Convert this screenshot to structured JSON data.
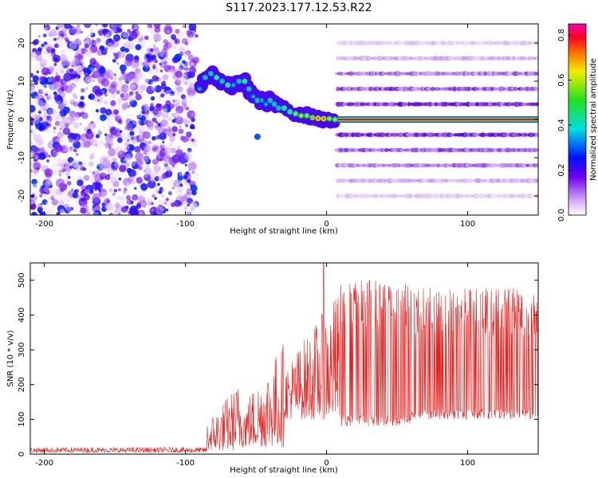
{
  "figure_title": "S117.2023.177.12.53.R22",
  "colors": {
    "snr_line": "#e8201e",
    "spectrum_noise": "#7a12e8",
    "axis": "#000000"
  },
  "chart_data": [
    {
      "type": "heatmap",
      "xlabel": "Height of straight line (km)",
      "ylabel": "Frequency (Hz)",
      "xlim": [
        -210,
        150
      ],
      "ylim": [
        -25,
        25
      ],
      "xticks": [
        -200,
        -100,
        0,
        100
      ],
      "yticks": [
        -20,
        -10,
        0,
        10,
        20
      ],
      "grid": false,
      "colorbar": {
        "label": "Normalized spectral amplitude",
        "range": [
          0,
          0.85
        ],
        "ticks": [
          "0.0",
          "0.2",
          "0.4",
          "0.6",
          "0.8"
        ],
        "colormap": "rainbow"
      },
      "features": {
        "noise_region_x": [
          -210,
          -92
        ],
        "track_points": [
          {
            "x": -90,
            "y": 8,
            "v": 0.3
          },
          {
            "x": -86,
            "y": 11,
            "v": 0.35
          },
          {
            "x": -82,
            "y": 12,
            "v": 0.35
          },
          {
            "x": -78,
            "y": 11,
            "v": 0.4
          },
          {
            "x": -74,
            "y": 10,
            "v": 0.35
          },
          {
            "x": -70,
            "y": 9,
            "v": 0.4
          },
          {
            "x": -66,
            "y": 9,
            "v": 0.3
          },
          {
            "x": -62,
            "y": 10,
            "v": 0.35
          },
          {
            "x": -58,
            "y": 10,
            "v": 0.4
          },
          {
            "x": -55,
            "y": 8,
            "v": 0.35
          },
          {
            "x": -52,
            "y": 6,
            "v": 0.3
          },
          {
            "x": -49,
            "y": 5,
            "v": 0.35
          },
          {
            "x": -46,
            "y": 5,
            "v": 0.3
          },
          {
            "x": -43,
            "y": 4,
            "v": 0.3
          },
          {
            "x": -40,
            "y": 5,
            "v": 0.35
          },
          {
            "x": -37,
            "y": 4,
            "v": 0.35
          },
          {
            "x": -34,
            "y": 3,
            "v": 0.35
          },
          {
            "x": -30,
            "y": 3,
            "v": 0.4
          },
          {
            "x": -26,
            "y": 2,
            "v": 0.4
          },
          {
            "x": -22,
            "y": 1.5,
            "v": 0.45
          },
          {
            "x": -18,
            "y": 1,
            "v": 0.5
          },
          {
            "x": -14,
            "y": 1,
            "v": 0.45
          },
          {
            "x": -10,
            "y": 0.5,
            "v": 0.55
          },
          {
            "x": -6,
            "y": 0.3,
            "v": 0.6
          },
          {
            "x": -2,
            "y": 0.2,
            "v": 0.6
          },
          {
            "x": 2,
            "y": 0.2,
            "v": 0.5
          },
          {
            "x": 6,
            "y": 0,
            "v": 0.45
          }
        ],
        "tail_point": {
          "x": -49,
          "y": -4.5,
          "v": 0.3
        },
        "carrier": {
          "x_start": 8,
          "y": 0,
          "amplitude": 0.85
        },
        "sideband_frequencies": [
          -20,
          -16,
          -12,
          -8,
          -4,
          4,
          8,
          12,
          16,
          20
        ],
        "sideband_strength": [
          0.04,
          0.06,
          0.1,
          0.12,
          0.15,
          0.15,
          0.12,
          0.1,
          0.06,
          0.04
        ]
      }
    },
    {
      "type": "line",
      "xlabel": "Height of straight line (km)",
      "ylabel": "SNR (10 * v/v)",
      "xlim": [
        -210,
        150
      ],
      "ylim": [
        0,
        550
      ],
      "xticks": [
        -200,
        -100,
        0,
        100
      ],
      "yticks": [
        0,
        100,
        200,
        300,
        400,
        500
      ],
      "grid": false,
      "series": [
        {
          "segments": [
            {
              "x": [
                -210,
                -85
              ],
              "lower": 5,
              "upper": 20
            },
            {
              "x": [
                -85,
                -60
              ],
              "lower": 10,
              "upper": 220
            },
            {
              "x": [
                -60,
                -30
              ],
              "lower": 20,
              "upper": 330
            },
            {
              "x": [
                -30,
                10
              ],
              "lower": 100,
              "upper": 480
            },
            {
              "x": [
                10,
                60
              ],
              "lower": 80,
              "upper": 500
            },
            {
              "x": [
                60,
                150
              ],
              "lower": 100,
              "upper": 480
            }
          ],
          "peak": {
            "x": -2,
            "y": 550
          }
        }
      ]
    }
  ]
}
